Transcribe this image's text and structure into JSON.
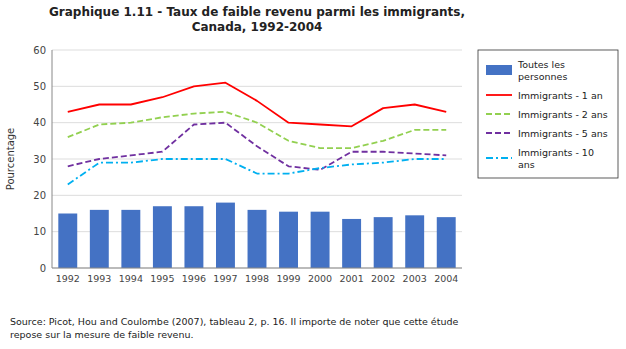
{
  "chart_data": {
    "type": "bar",
    "title": "Graphique 1.11 - Taux de faible revenu parmi les immigrants,\nCanada, 1992-2004",
    "ylabel": "Pourcentage",
    "source": "Source: Picot, Hou and Coulombe (2007), tableau 2, p. 16. Il importe de noter que cette étude\nrepose sur la mesure de faible revenu.",
    "x": [
      1992,
      1993,
      1994,
      1995,
      1996,
      1997,
      1998,
      1999,
      2000,
      2001,
      2002,
      2003,
      2004
    ],
    "xlim": [
      1991.5,
      2004.5
    ],
    "xticks": [
      1992,
      1993,
      1994,
      1995,
      1996,
      1997,
      1998,
      1999,
      2000,
      2001,
      2002,
      2003,
      2004
    ],
    "ylim": [
      0,
      60
    ],
    "yticks": [
      0,
      10,
      20,
      30,
      40,
      50,
      60
    ],
    "grid": true,
    "legend": "right",
    "series": [
      {
        "name": "Toutes les\npersonnes",
        "type": "bar",
        "color": "#4472C4",
        "values": [
          15,
          16,
          16,
          17,
          17,
          18,
          16,
          15.5,
          15.5,
          13.5,
          14,
          14.5,
          14
        ]
      },
      {
        "name": "Immigrants - 1 an",
        "type": "line",
        "color": "#FF0000",
        "line_style": "solid",
        "values": [
          43,
          45,
          45,
          47,
          50,
          51,
          46,
          40,
          39.5,
          39,
          44,
          45,
          43
        ]
      },
      {
        "name": "Immigrants - 2 ans",
        "type": "line",
        "color": "#92D050",
        "line_style": "dashed",
        "values": [
          36,
          39.5,
          40,
          41.5,
          42.5,
          43,
          40,
          35,
          33,
          33,
          35,
          38,
          38
        ]
      },
      {
        "name": "Immigrants - 5 ans",
        "type": "line",
        "color": "#7030A0",
        "line_style": "dashed",
        "values": [
          28,
          30,
          31,
          32,
          39.5,
          40,
          33.5,
          28,
          27,
          32,
          32,
          31.5,
          31
        ]
      },
      {
        "name": "Immigrants - 10\nans",
        "type": "line",
        "color": "#00B0F0",
        "line_style": "dashdot",
        "values": [
          23,
          29,
          29,
          30,
          30,
          30,
          26,
          26,
          27.5,
          28.5,
          29,
          30,
          30
        ]
      }
    ]
  }
}
